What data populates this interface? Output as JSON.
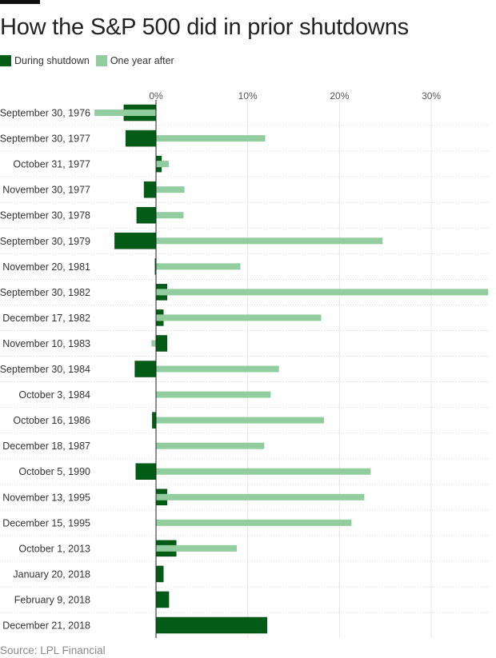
{
  "title": "How the S&P 500 did in prior shutdowns",
  "source": "Source: LPL Financial",
  "colors": {
    "during": "#035c16",
    "after": "#92cd9f"
  },
  "chart_data": {
    "type": "bar",
    "orientation": "horizontal",
    "title": "How the S&P 500 did in prior shutdowns",
    "xlim": [
      -17,
      36.2
    ],
    "xticks": [
      0,
      10,
      20,
      30
    ],
    "xtick_labels": [
      "0%",
      "10%",
      "20%",
      "30%"
    ],
    "grid": true,
    "legend": "top-left",
    "categories": [
      "September 30, 1976",
      "September 30, 1977",
      "October 31, 1977",
      "November 30, 1977",
      "September 30, 1978",
      "September 30, 1979",
      "November 20, 1981",
      "September 30, 1982",
      "December 17, 1982",
      "November 10, 1983",
      "September 30, 1984",
      "October 3, 1984",
      "October 16, 1986",
      "December 18, 1987",
      "October 5, 1990",
      "November 13, 1995",
      "December 15, 1995",
      "October 1, 2013",
      "January 20, 2018",
      "February 9, 2018",
      "December 21, 2018"
    ],
    "series": [
      {
        "name": "During shutdown",
        "values": [
          -3.5,
          -3.3,
          0.6,
          -1.3,
          -2.1,
          -4.5,
          -0.1,
          1.2,
          0.8,
          1.2,
          -2.3,
          0,
          -0.4,
          0,
          -2.2,
          1.2,
          0,
          2.2,
          0.8,
          1.4,
          12.1
        ]
      },
      {
        "name": "One year after",
        "values": [
          -6.7,
          11.9,
          1.4,
          3.1,
          3.0,
          24.7,
          9.2,
          36.2,
          18.0,
          -0.5,
          13.4,
          12.5,
          18.3,
          11.8,
          23.4,
          22.7,
          21.3,
          8.8,
          null,
          null,
          null
        ]
      }
    ]
  }
}
